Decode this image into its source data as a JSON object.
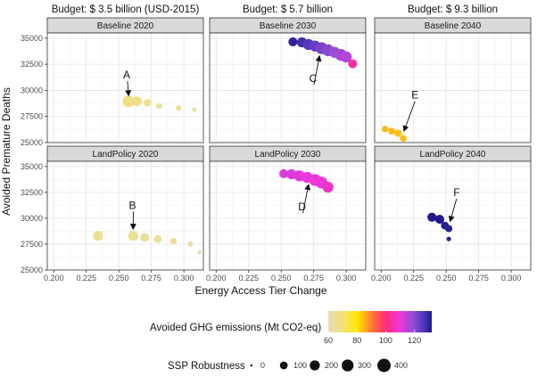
{
  "chart_data": {
    "type": "scatter",
    "budgets": [
      "Budget: $ 3.5 billion (USD-2015)",
      "Budget: $ 5.7 billion",
      "Budget: $ 9.3 billion"
    ],
    "xlabel": "Energy Access Tier Change",
    "ylabel": "Avoided Premature Deaths",
    "xlim": [
      0.195,
      0.315
    ],
    "ylim": [
      25000,
      35500
    ],
    "x_ticks": [
      0.2,
      0.225,
      0.25,
      0.275,
      0.3
    ],
    "x_tick_labels": [
      "0.200",
      "0.225",
      "0.250",
      "0.275",
      "0.300"
    ],
    "y_ticks": [
      25000,
      27500,
      30000,
      32500,
      35000
    ],
    "y_tick_labels": [
      "25000",
      "27500",
      "30000",
      "32500",
      "35000"
    ],
    "panels": [
      {
        "title": "Baseline 2020",
        "row": 0,
        "col": 0,
        "points": [
          {
            "x": 0.2575,
            "y": 28950,
            "ghg": 68,
            "ssp": 300
          },
          {
            "x": 0.264,
            "y": 28950,
            "ghg": 67,
            "ssp": 200
          },
          {
            "x": 0.272,
            "y": 28800,
            "ghg": 66,
            "ssp": 100
          },
          {
            "x": 0.281,
            "y": 28500,
            "ghg": 66,
            "ssp": 50
          },
          {
            "x": 0.296,
            "y": 28300,
            "ghg": 66,
            "ssp": 40
          },
          {
            "x": 0.308,
            "y": 28150,
            "ghg": 65,
            "ssp": 15
          }
        ],
        "annotation": {
          "label": "A",
          "x": 0.256,
          "y": 31500,
          "ax": 0.2575,
          "ay": 29500
        }
      },
      {
        "title": "Baseline 2030",
        "row": 0,
        "col": 1,
        "points": [
          {
            "x": 0.259,
            "y": 34650,
            "ghg": 130,
            "ssp": 150
          },
          {
            "x": 0.266,
            "y": 34600,
            "ghg": 128,
            "ssp": 200
          },
          {
            "x": 0.271,
            "y": 34400,
            "ghg": 126,
            "ssp": 250
          },
          {
            "x": 0.276,
            "y": 34250,
            "ghg": 124,
            "ssp": 250
          },
          {
            "x": 0.281,
            "y": 34050,
            "ghg": 122,
            "ssp": 300
          },
          {
            "x": 0.286,
            "y": 33850,
            "ghg": 120,
            "ssp": 300
          },
          {
            "x": 0.291,
            "y": 33650,
            "ghg": 118,
            "ssp": 250
          },
          {
            "x": 0.296,
            "y": 33400,
            "ghg": 117,
            "ssp": 300
          },
          {
            "x": 0.3,
            "y": 33200,
            "ghg": 115,
            "ssp": 250
          },
          {
            "x": 0.305,
            "y": 32550,
            "ghg": 104,
            "ssp": 150
          }
        ],
        "annotation": {
          "label": "C",
          "x": 0.2745,
          "y": 31150,
          "ax": 0.2795,
          "ay": 33300
        }
      },
      {
        "title": "Baseline 2040",
        "row": 0,
        "col": 2,
        "points": [
          {
            "x": 0.203,
            "y": 26300,
            "ghg": 85,
            "ssp": 60
          },
          {
            "x": 0.208,
            "y": 26100,
            "ghg": 85,
            "ssp": 70
          },
          {
            "x": 0.213,
            "y": 25900,
            "ghg": 84,
            "ssp": 90
          },
          {
            "x": 0.217,
            "y": 25400,
            "ghg": 84,
            "ssp": 70
          }
        ],
        "annotation": {
          "label": "E",
          "x": 0.226,
          "y": 29550,
          "ax": 0.2175,
          "ay": 26100
        }
      },
      {
        "title": "LandPolicy 2020",
        "row": 1,
        "col": 0,
        "points": [
          {
            "x": 0.234,
            "y": 28300,
            "ghg": 66,
            "ssp": 200
          },
          {
            "x": 0.261,
            "y": 28300,
            "ghg": 66,
            "ssp": 200
          },
          {
            "x": 0.27,
            "y": 28150,
            "ghg": 65,
            "ssp": 150
          },
          {
            "x": 0.28,
            "y": 28000,
            "ghg": 65,
            "ssp": 100
          },
          {
            "x": 0.292,
            "y": 27800,
            "ghg": 64,
            "ssp": 60
          },
          {
            "x": 0.305,
            "y": 27500,
            "ghg": 64,
            "ssp": 30
          },
          {
            "x": 0.312,
            "y": 26700,
            "ghg": 63,
            "ssp": 10
          }
        ],
        "annotation": {
          "label": "B",
          "x": 0.2605,
          "y": 31250,
          "ax": 0.261,
          "ay": 28950
        }
      },
      {
        "title": "LandPolicy 2030",
        "row": 1,
        "col": 1,
        "points": [
          {
            "x": 0.252,
            "y": 34300,
            "ghg": 112,
            "ssp": 150
          },
          {
            "x": 0.258,
            "y": 34250,
            "ghg": 112,
            "ssp": 200
          },
          {
            "x": 0.264,
            "y": 34100,
            "ghg": 111,
            "ssp": 250
          },
          {
            "x": 0.27,
            "y": 33950,
            "ghg": 111,
            "ssp": 250
          },
          {
            "x": 0.276,
            "y": 33700,
            "ghg": 110,
            "ssp": 300
          },
          {
            "x": 0.281,
            "y": 33450,
            "ghg": 110,
            "ssp": 300
          },
          {
            "x": 0.286,
            "y": 33000,
            "ghg": 108,
            "ssp": 250
          }
        ],
        "annotation": {
          "label": "D",
          "x": 0.266,
          "y": 31100,
          "ax": 0.271,
          "ay": 33250
        }
      },
      {
        "title": "LandPolicy 2040",
        "row": 1,
        "col": 2,
        "points": [
          {
            "x": 0.239,
            "y": 30100,
            "ghg": 132,
            "ssp": 150
          },
          {
            "x": 0.245,
            "y": 29900,
            "ghg": 132,
            "ssp": 150
          },
          {
            "x": 0.249,
            "y": 29300,
            "ghg": 131,
            "ssp": 100
          },
          {
            "x": 0.252,
            "y": 29000,
            "ghg": 131,
            "ssp": 80
          },
          {
            "x": 0.252,
            "y": 28000,
            "ghg": 130,
            "ssp": 20
          }
        ],
        "annotation": {
          "label": "F",
          "x": 0.258,
          "y": 32500,
          "ax": 0.253,
          "ay": 29700
        }
      }
    ],
    "legend_color": {
      "title": "Avoided GHG emissions (Mt CO2-eq)",
      "range": [
        60,
        132
      ],
      "ticks": [
        60,
        80,
        100,
        120
      ],
      "tick_labels": [
        "60",
        "80",
        "100",
        "120"
      ],
      "stops": [
        {
          "value": 60,
          "color": "#e6dcb3"
        },
        {
          "value": 70,
          "color": "#f2e27a"
        },
        {
          "value": 80,
          "color": "#ffea00"
        },
        {
          "value": 92,
          "color": "#ff6a3d"
        },
        {
          "value": 100,
          "color": "#ff2d7a"
        },
        {
          "value": 110,
          "color": "#ee36dc"
        },
        {
          "value": 118,
          "color": "#9b4bd6"
        },
        {
          "value": 125,
          "color": "#5b3cc4"
        },
        {
          "value": 132,
          "color": "#1f1a87"
        }
      ]
    },
    "legend_size": {
      "title": "SSP Robustness",
      "values": [
        0,
        100,
        200,
        300,
        400
      ],
      "labels": [
        "0",
        "100",
        "200",
        "300",
        "400"
      ]
    }
  }
}
